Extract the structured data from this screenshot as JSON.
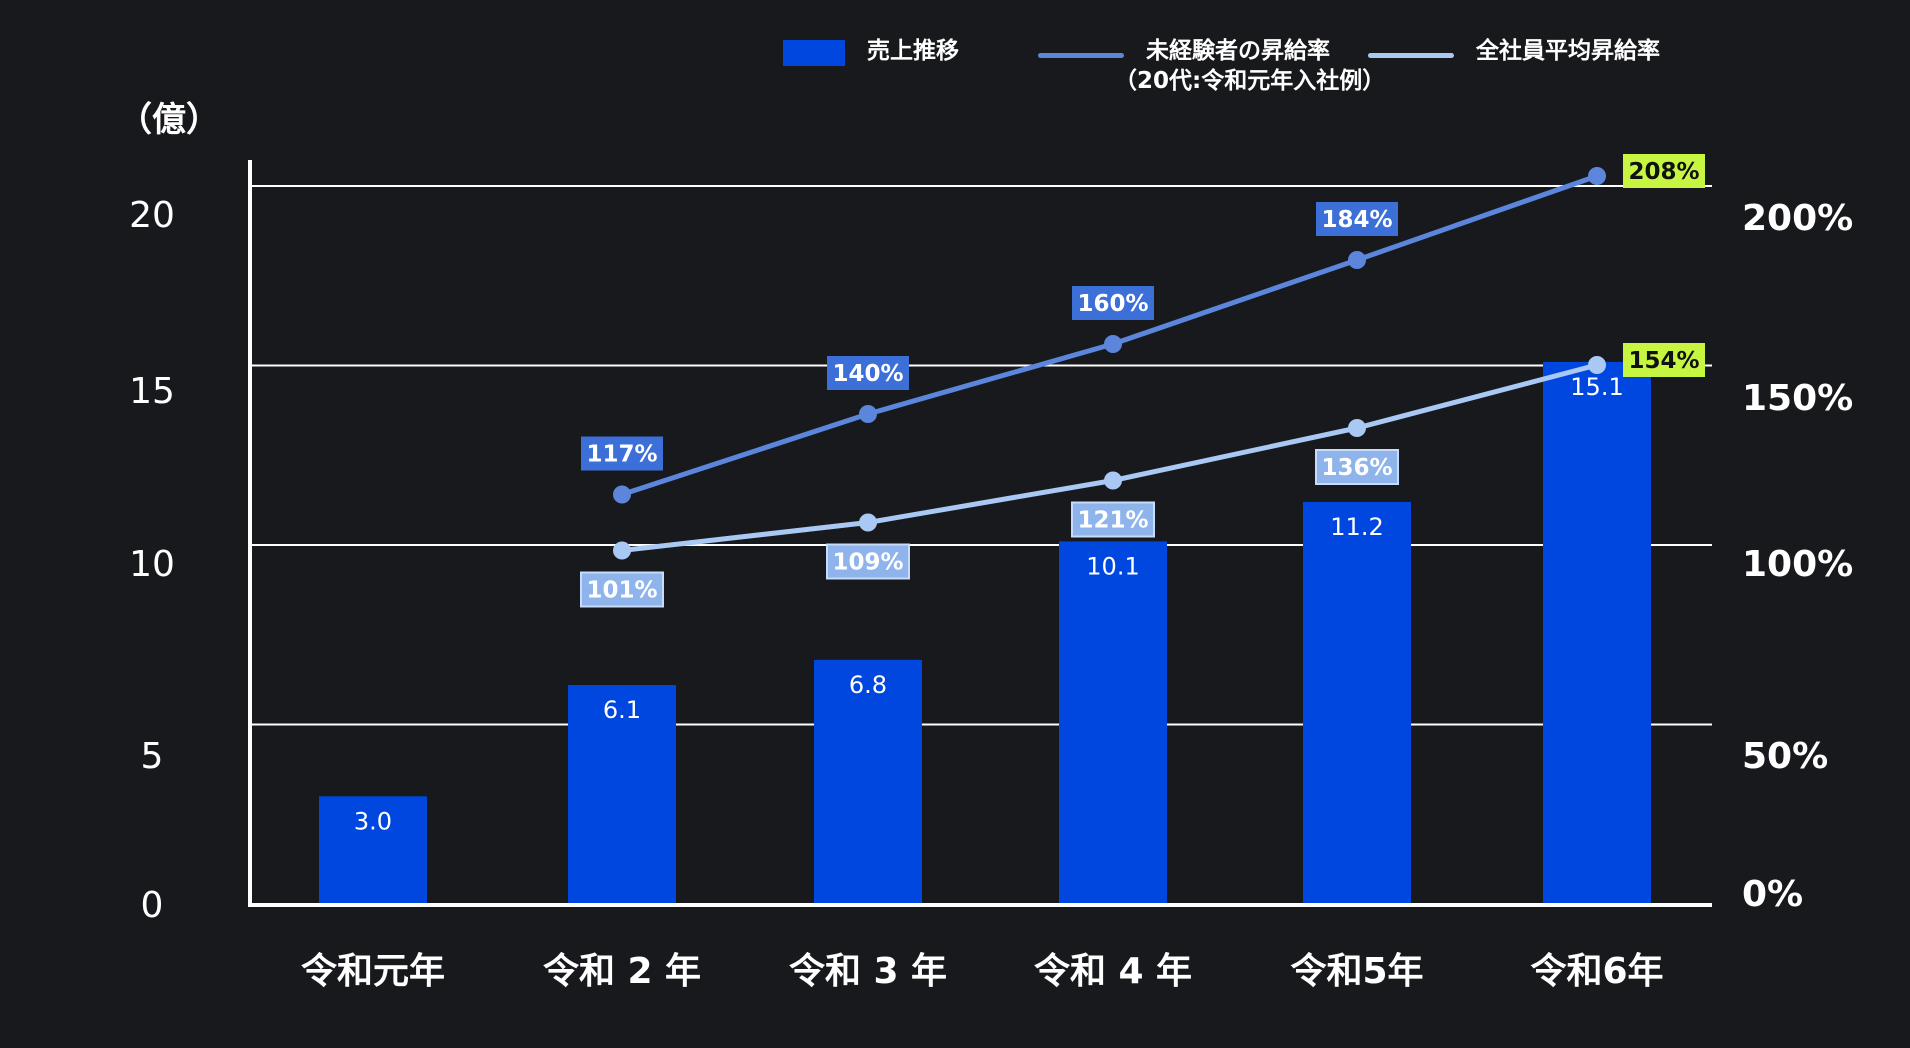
{
  "colors": {
    "background": "#18191d",
    "bar": "#0047e0",
    "line_inexperienced": "#5b86dc",
    "line_all": "#a9c8f4",
    "highlight_label": "#c6f542",
    "grid": "#ffffff"
  },
  "legend": {
    "bar_label": "売上推移",
    "line1_label": "未経験者の昇給率",
    "line1_sub": "（20代:令和元年入社例）",
    "line2_label": "全社員平均昇給率"
  },
  "unit_label": "（億）",
  "chart_data": {
    "type": "bar",
    "categories": [
      "令和元年",
      "令和 2 年",
      "令和 3 年",
      "令和 4 年",
      "令和5年",
      "令和6年"
    ],
    "series": [
      {
        "name": "売上推移",
        "type": "bar",
        "axis": "left",
        "values": [
          3.0,
          6.1,
          6.8,
          10.1,
          11.2,
          15.1
        ],
        "labels": [
          "3.0",
          "6.1",
          "6.8",
          "10.1",
          "11.2",
          "15.1"
        ]
      },
      {
        "name": "未経験者の昇給率（20代:令和元年入社例）",
        "type": "line",
        "axis": "right",
        "values": [
          null,
          117,
          140,
          160,
          184,
          208
        ],
        "labels": [
          null,
          "117%",
          "140%",
          "160%",
          "184%",
          "208%"
        ]
      },
      {
        "name": "全社員平均昇給率",
        "type": "line",
        "axis": "right",
        "values": [
          null,
          101,
          109,
          121,
          136,
          154
        ],
        "labels": [
          null,
          "101%",
          "109%",
          "121%",
          "136%",
          "154%"
        ]
      }
    ],
    "left_axis": {
      "ticks": [
        "0",
        "5",
        "10",
        "15",
        "20"
      ]
    },
    "right_axis": {
      "ticks": [
        "0%",
        "50%",
        "100%",
        "150%",
        "200%"
      ]
    },
    "grid": true,
    "legend_position": "top-right"
  }
}
